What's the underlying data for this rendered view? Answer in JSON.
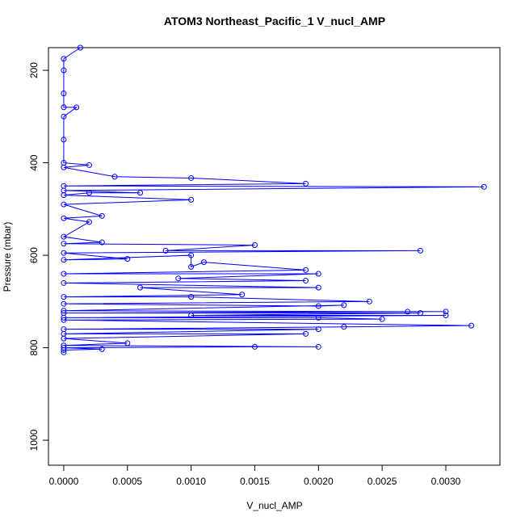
{
  "chart_data": {
    "type": "line",
    "title": "ATOM3 Northeast_Pacific_1 V_nucl_AMP",
    "x_label": "V_nucl_AMP",
    "y_label": "Pressure (mbar)",
    "xlim": [
      -0.00012,
      0.003425
    ],
    "ylim": [
      1054,
      151
    ],
    "xticks": [
      {
        "value": 0,
        "label": "0.0000"
      },
      {
        "value": 0.0005,
        "label": "0.0005"
      },
      {
        "value": 0.001,
        "label": "0.0010"
      },
      {
        "value": 0.0015,
        "label": "0.0015"
      },
      {
        "value": 0.002,
        "label": "0.0020"
      },
      {
        "value": 0.0025,
        "label": "0.0025"
      },
      {
        "value": 0.003,
        "label": "0.0030"
      }
    ],
    "yticks": [
      200,
      400,
      600,
      800,
      1000
    ],
    "grid": false,
    "series": [
      {
        "color": "#0000ff",
        "x": [
          0.00013,
          0,
          0,
          0,
          0,
          0.0001,
          0,
          0,
          0,
          0.0002,
          0,
          0.0004,
          0.001,
          0.0019,
          0,
          0.0033,
          0,
          0.0006,
          0.0002,
          0,
          0.001,
          0,
          0.0003,
          0,
          0.0002,
          0,
          0.0003,
          0,
          0.0015,
          0.0008,
          0.0028,
          0,
          0.0005,
          0,
          0.001,
          0.001,
          0.0011,
          0.0019,
          0,
          0.002,
          0.0009,
          0.0019,
          0,
          0.002,
          0.0006,
          0.0014,
          0,
          0.001,
          0.0024,
          0,
          0.002,
          0.0022,
          0,
          0.003,
          0.0027,
          0,
          0.0028,
          0.001,
          0.003,
          0,
          0.002,
          0.0025,
          0,
          0.0032,
          0.0022,
          0,
          0.002,
          0,
          0.0019,
          0,
          0.0005,
          0,
          0.002,
          0.0015,
          0,
          0.0003,
          0,
          0
        ],
        "values": [
          151,
          175,
          200,
          250,
          280,
          280,
          300,
          350,
          400,
          405,
          410,
          430,
          433,
          445,
          450,
          452,
          460,
          465,
          465,
          470,
          480,
          490,
          515,
          520,
          528,
          560,
          572,
          575,
          578,
          590,
          590,
          595,
          608,
          610,
          600,
          625,
          615,
          632,
          640,
          640,
          650,
          655,
          660,
          670,
          670,
          685,
          690,
          690,
          700,
          705,
          710,
          708,
          720,
          722,
          722,
          725,
          725,
          730,
          730,
          735,
          735,
          738,
          740,
          752,
          755,
          760,
          760,
          770,
          770,
          780,
          790,
          795,
          798,
          798,
          800,
          803,
          805,
          810
        ]
      }
    ]
  }
}
